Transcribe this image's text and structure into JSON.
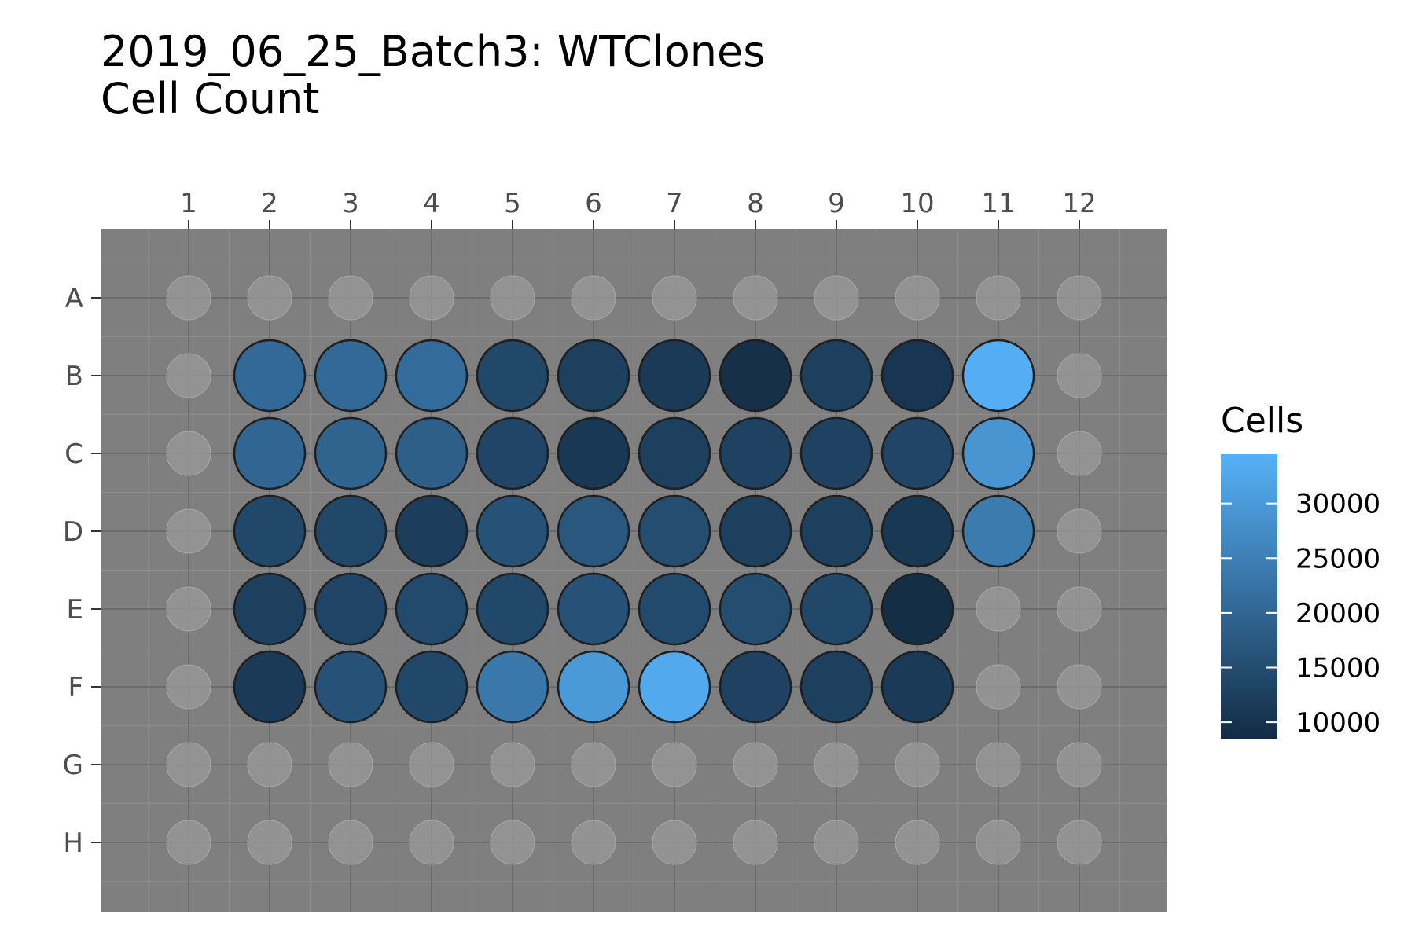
{
  "chart_data": {
    "type": "heatmap",
    "title": "2019_06_25_Batch3: WTClones",
    "subtitle": "Cell Count",
    "columns": [
      "1",
      "2",
      "3",
      "4",
      "5",
      "6",
      "7",
      "8",
      "9",
      "10",
      "11",
      "12"
    ],
    "rows": [
      "A",
      "B",
      "C",
      "D",
      "E",
      "F",
      "G",
      "H"
    ],
    "legend": {
      "title": "Cells",
      "ticks": [
        30000,
        25000,
        20000,
        15000,
        10000
      ],
      "tick_labels": [
        "30000",
        "25000",
        "20000",
        "15000",
        "10000"
      ],
      "range": [
        8500,
        34500
      ],
      "color_low": "#132b43",
      "color_high": "#56b1f7",
      "position": "right"
    },
    "empty_well_fill": "#9a9a9a",
    "panel_background": "#7f7f7f",
    "values": [
      [
        null,
        null,
        null,
        null,
        null,
        null,
        null,
        null,
        null,
        null,
        null,
        null
      ],
      [
        null,
        20500,
        20500,
        21000,
        14000,
        12500,
        11500,
        9500,
        12500,
        10500,
        34000,
        null
      ],
      [
        null,
        20000,
        19500,
        18500,
        13500,
        11000,
        12500,
        13000,
        13000,
        13500,
        29000,
        null
      ],
      [
        null,
        14000,
        14000,
        12000,
        16000,
        17000,
        15000,
        12500,
        12500,
        11000,
        24000,
        null
      ],
      [
        null,
        12500,
        13500,
        14500,
        14000,
        16000,
        14500,
        15000,
        14000,
        9000,
        null,
        null
      ],
      [
        null,
        11500,
        16000,
        14000,
        23500,
        30000,
        33000,
        13000,
        12500,
        11500,
        null,
        null
      ],
      [
        null,
        null,
        null,
        null,
        null,
        null,
        null,
        null,
        null,
        null,
        null,
        null
      ],
      [
        null,
        null,
        null,
        null,
        null,
        null,
        null,
        null,
        null,
        null,
        null,
        null
      ]
    ]
  }
}
